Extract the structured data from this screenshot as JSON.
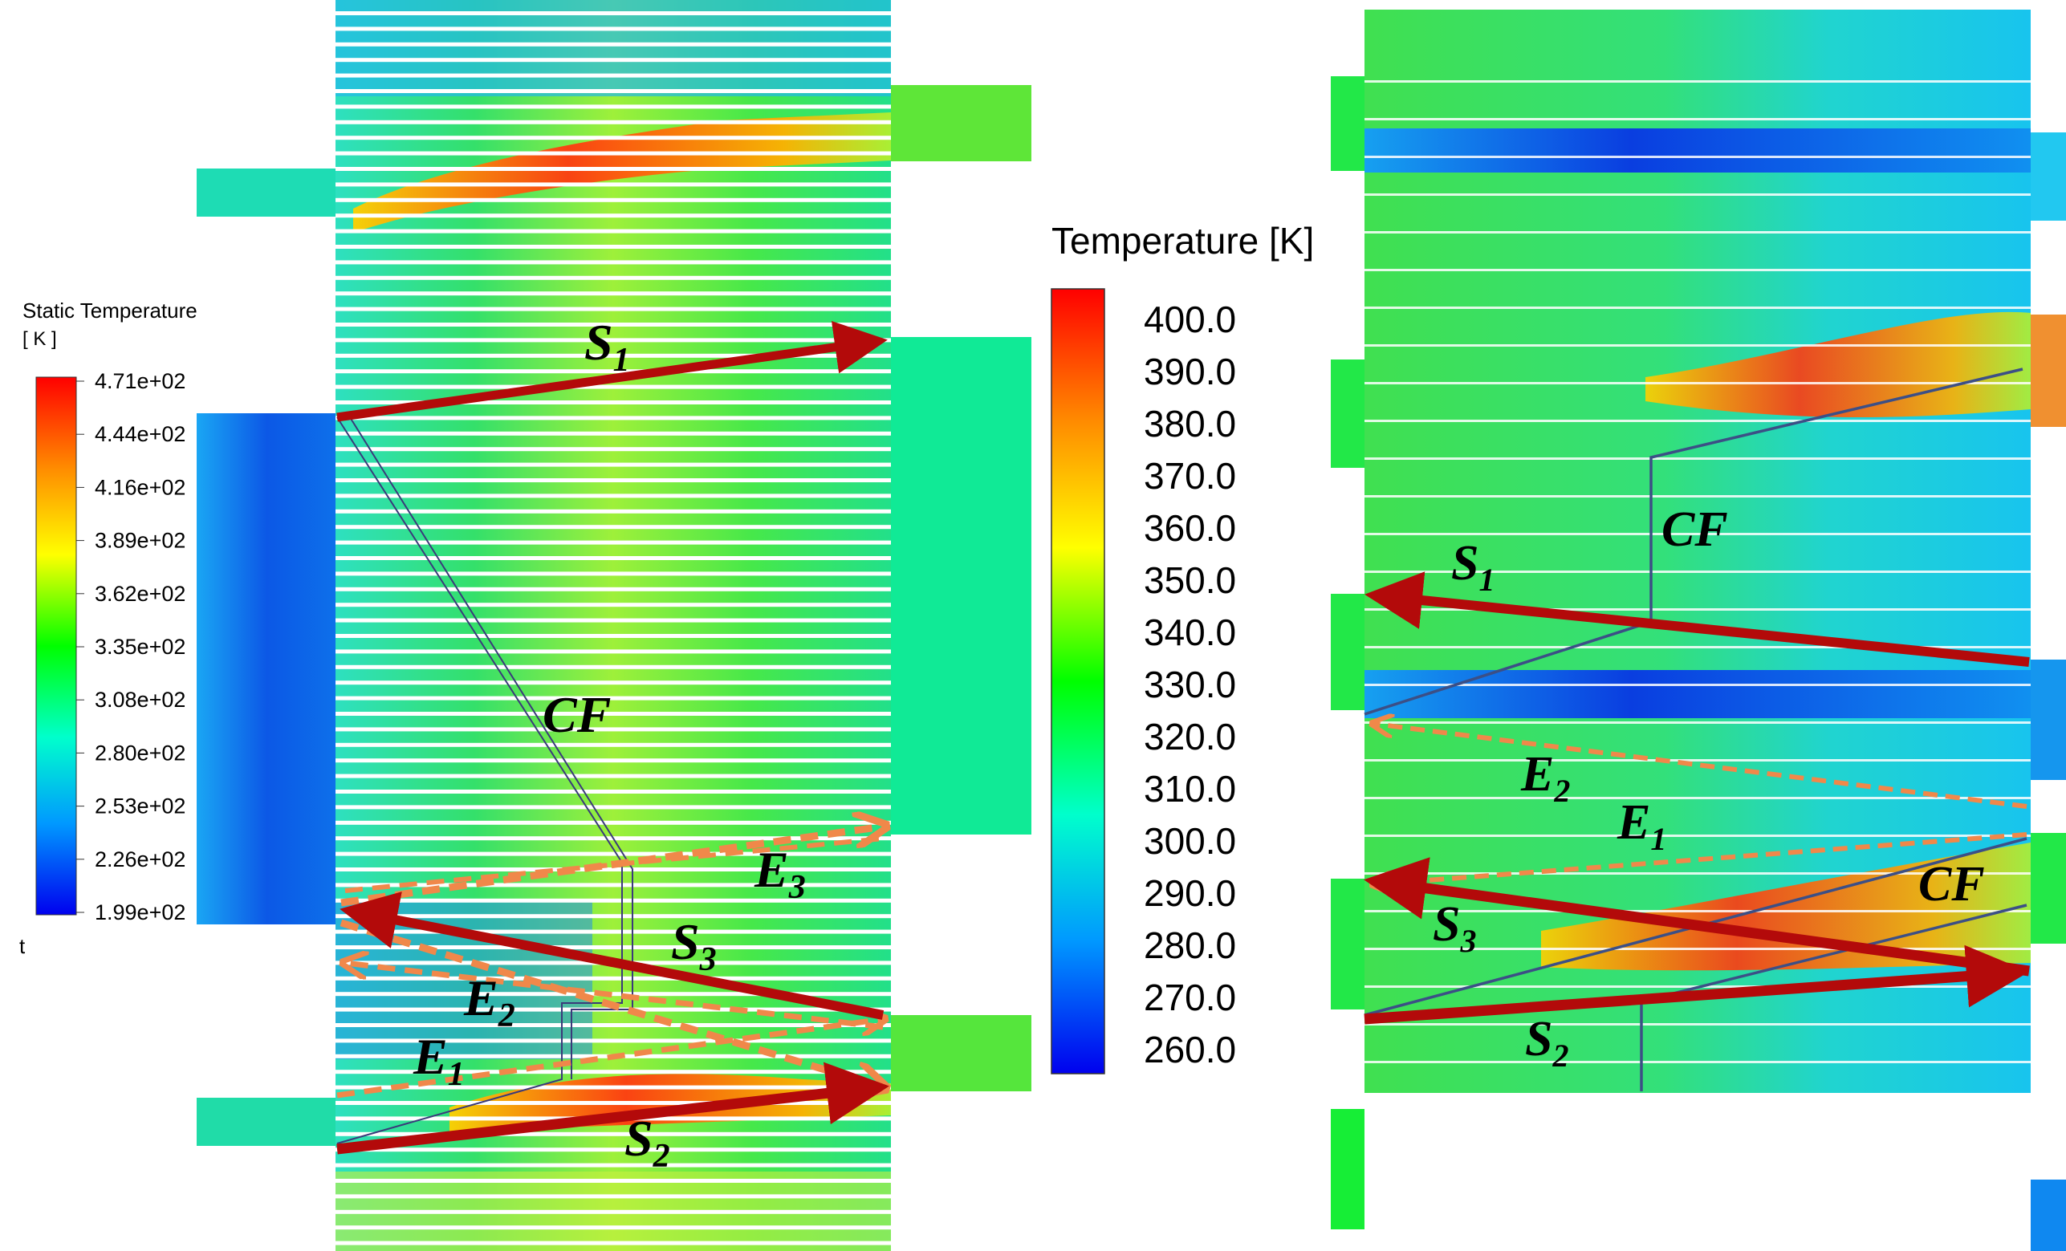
{
  "left_legend": {
    "title_line1": "Static Temperature",
    "title_line2": "[ K ]",
    "ticks": [
      "4.71e+02",
      "4.44e+02",
      "4.16e+02",
      "3.89e+02",
      "3.62e+02",
      "3.35e+02",
      "3.08e+02",
      "2.80e+02",
      "2.53e+02",
      "2.26e+02",
      "1.99e+02"
    ],
    "footer": "t"
  },
  "center_legend": {
    "title": "Temperature [K]",
    "ticks": [
      "400.0",
      "390.0",
      "380.0",
      "370.0",
      "360.0",
      "350.0",
      "340.0",
      "330.0",
      "320.0",
      "310.0",
      "300.0",
      "290.0",
      "280.0",
      "270.0",
      "260.0"
    ]
  },
  "left_diagram": {
    "labels": {
      "s1": "S",
      "s1_sub": "1",
      "s2": "S",
      "s2_sub": "2",
      "s3": "S",
      "s3_sub": "3",
      "e1": "E",
      "e1_sub": "1",
      "e2": "E",
      "e2_sub": "2",
      "e3": "E",
      "e3_sub": "3",
      "cf": "CF"
    }
  },
  "right_diagram": {
    "labels": {
      "s1": "S",
      "s1_sub": "1",
      "s2": "S",
      "s2_sub": "2",
      "s3": "S",
      "s3_sub": "3",
      "e1": "E",
      "e1_sub": "1",
      "e2": "E",
      "e2_sub": "2",
      "cf_top": "CF",
      "cf_bottom": "CF"
    }
  },
  "colors": {
    "stream_arrow": "#b30a0a",
    "exchange_arrow": "#f0884a",
    "cf_line_left": "#3a3a7a",
    "cf_line_right": "#3c4f86"
  }
}
